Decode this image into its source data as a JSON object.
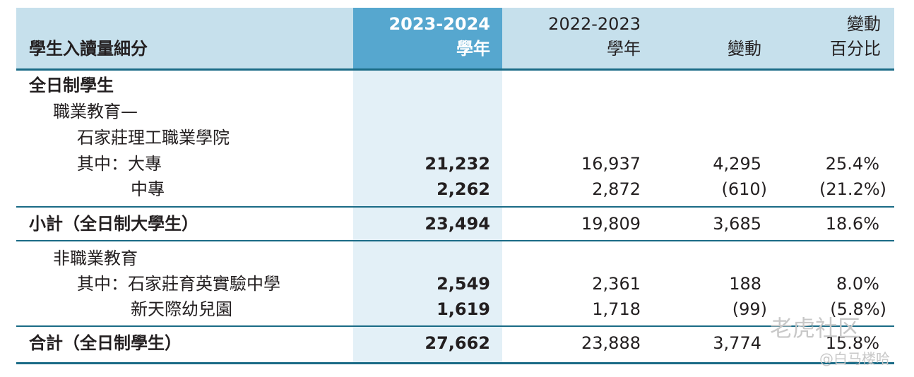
{
  "header": {
    "title": "學生入讀量細分",
    "col1_line1": "2023-2024",
    "col1_line2": "學年",
    "col2_line1": "2022-2023",
    "col2_line2": "學年",
    "col3": "變動",
    "col4_line1": "變動",
    "col4_line2": "百分比"
  },
  "rows": {
    "full_time": "全日制學生",
    "vocational": "職業教育—",
    "institute": "石家莊理工職業學院",
    "dazhuan": {
      "label": "其中：大專",
      "v2324": "21,232",
      "v2223": "16,937",
      "change": "4,295",
      "pct": "25.4%"
    },
    "zhongzhuan": {
      "label": "中專",
      "v2324": "2,262",
      "v2223": "2,872",
      "change": "(610)",
      "pct": "(21.2%)"
    },
    "subtotal": {
      "label": "小計（全日制大學生）",
      "v2324": "23,494",
      "v2223": "19,809",
      "change": "3,685",
      "pct": "18.6%"
    },
    "nonvoc": "非職業教育",
    "middle_school": {
      "label": "其中：石家莊育英實驗中學",
      "v2324": "2,549",
      "v2223": "2,361",
      "change": "188",
      "pct": "8.0%"
    },
    "kindergarten": {
      "label": "新天際幼兒園",
      "v2324": "1,619",
      "v2223": "1,718",
      "change": "(99)",
      "pct": "(5.8%)"
    },
    "total": {
      "label": "合計（全日制學生）",
      "v2324": "27,662",
      "v2223": "23,888",
      "change": "3,774",
      "pct": "15.8%"
    }
  },
  "watermark": {
    "line1": "老虎社区",
    "line2": "@白马楼哈"
  }
}
